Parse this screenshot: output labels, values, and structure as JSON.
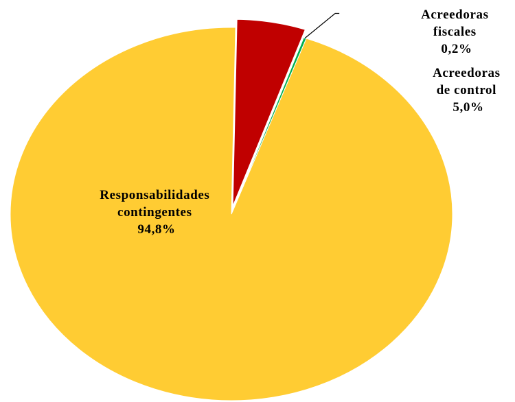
{
  "chart_data": {
    "type": "pie",
    "title": "",
    "slices": [
      {
        "label_lines": [
          "Responsabilidades",
          "contingentes"
        ],
        "pct_text": "94,8%",
        "value": 94.8,
        "color": "#FFCC33"
      },
      {
        "label_lines": [
          "Acreedoras",
          "de control"
        ],
        "pct_text": "5,0%",
        "value": 5.0,
        "color": "#C00000"
      },
      {
        "label_lines": [
          "Acreedoras",
          "fiscales"
        ],
        "pct_text": "0,2%",
        "value": 0.2,
        "color": "#00B050"
      }
    ],
    "legend": "none"
  }
}
